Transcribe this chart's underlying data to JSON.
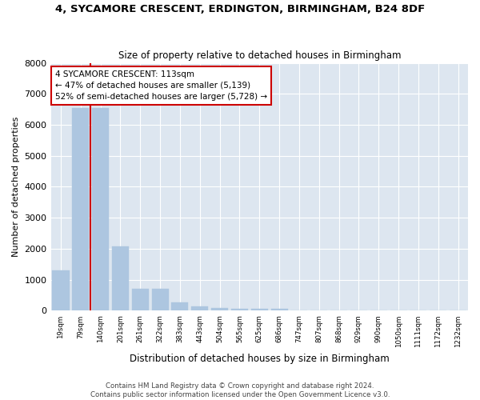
{
  "title_line1": "4, SYCAMORE CRESCENT, ERDINGTON, BIRMINGHAM, B24 8DF",
  "title_line2": "Size of property relative to detached houses in Birmingham",
  "xlabel": "Distribution of detached houses by size in Birmingham",
  "ylabel": "Number of detached properties",
  "categories": [
    "19sqm",
    "79sqm",
    "140sqm",
    "201sqm",
    "261sqm",
    "322sqm",
    "383sqm",
    "443sqm",
    "504sqm",
    "565sqm",
    "625sqm",
    "686sqm",
    "747sqm",
    "807sqm",
    "868sqm",
    "929sqm",
    "990sqm",
    "1050sqm",
    "1111sqm",
    "1172sqm",
    "1232sqm"
  ],
  "values": [
    1300,
    6550,
    6550,
    2080,
    700,
    700,
    275,
    145,
    90,
    60,
    60,
    60,
    0,
    0,
    0,
    0,
    0,
    0,
    0,
    0,
    0
  ],
  "bar_color": "#adc6e0",
  "bar_edge_color": "#adc6e0",
  "vline_color": "#cc0000",
  "vline_x": 1.5,
  "annotation_text": "4 SYCAMORE CRESCENT: 113sqm\n← 47% of detached houses are smaller (5,139)\n52% of semi-detached houses are larger (5,728) →",
  "annotation_box_color": "#cc0000",
  "background_color": "#dde6f0",
  "footnote": "Contains HM Land Registry data © Crown copyright and database right 2024.\nContains public sector information licensed under the Open Government Licence v3.0.",
  "ylim": [
    0,
    8000
  ],
  "yticks": [
    0,
    1000,
    2000,
    3000,
    4000,
    5000,
    6000,
    7000,
    8000
  ],
  "figsize": [
    6.0,
    5.0
  ],
  "dpi": 100
}
